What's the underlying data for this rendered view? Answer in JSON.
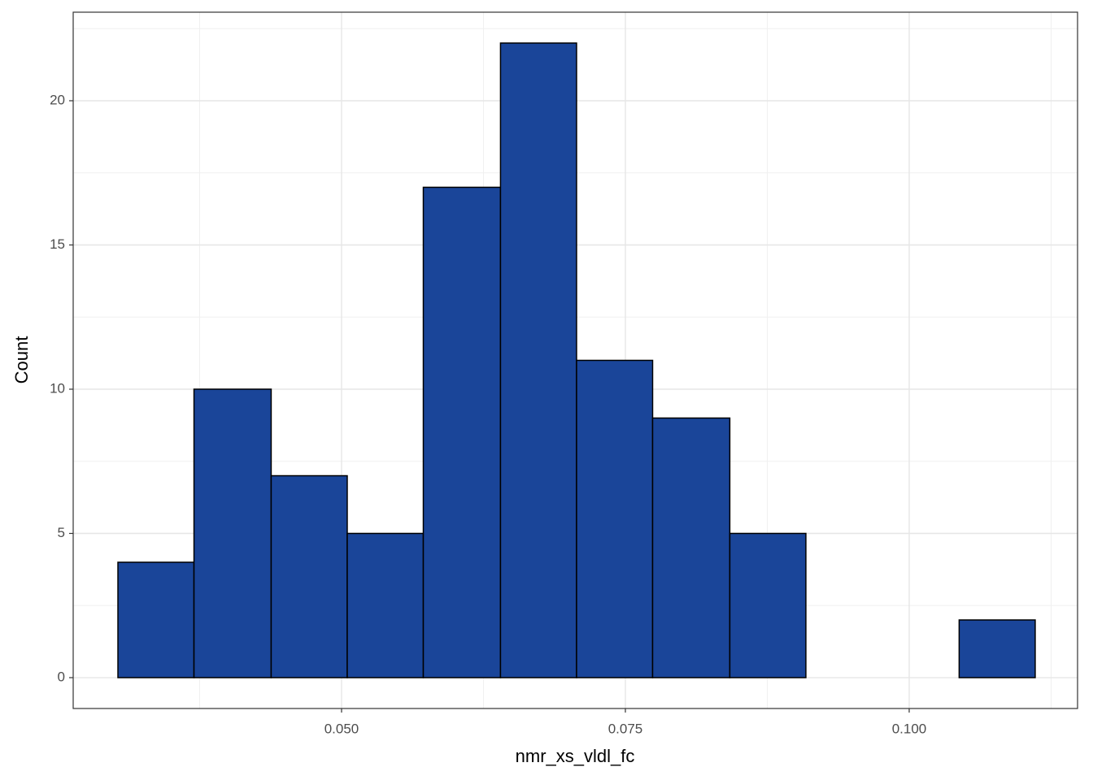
{
  "chart_data": {
    "type": "histogram",
    "x_label": "nmr_xs_vldl_fc",
    "y_label": "Count",
    "bins": [
      0.0303,
      0.037,
      0.0438,
      0.0505,
      0.0572,
      0.064,
      0.0707,
      0.0774,
      0.0842,
      0.0909,
      0.0976,
      0.1044,
      0.1111
    ],
    "values": [
      4,
      10,
      7,
      5,
      17,
      22,
      11,
      9,
      5,
      0,
      0,
      2
    ],
    "color": "#1a4599",
    "edge_color": "#000000",
    "xlim": [
      0.02636,
      0.11483
    ],
    "ylim": [
      -1.07,
      23.07
    ],
    "xticks": [
      {
        "value": 0.05,
        "label": "0.050"
      },
      {
        "value": 0.075,
        "label": "0.075"
      },
      {
        "value": 0.1,
        "label": "0.100"
      }
    ],
    "yticks": [
      0,
      5,
      10,
      15,
      20
    ],
    "x_minor_grid": [
      0.0375,
      0.0625,
      0.0875,
      0.1125
    ],
    "y_minor_grid": [
      2.5,
      7.5,
      12.5,
      17.5,
      22.5
    ],
    "grid": true
  }
}
